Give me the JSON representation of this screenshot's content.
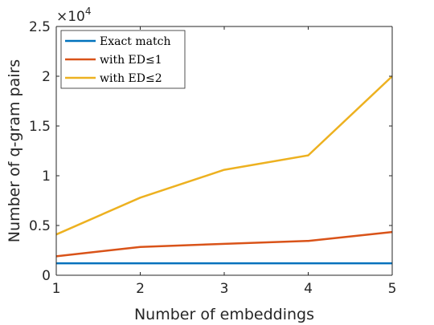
{
  "chart_data": {
    "type": "line",
    "xlabel": "Number of embeddings",
    "ylabel": "Number of q-gram pairs",
    "x": [
      1,
      2,
      3,
      4,
      5
    ],
    "xlim": [
      1,
      5
    ],
    "ylim": [
      0,
      25000
    ],
    "x_ticks": [
      "1",
      "2",
      "3",
      "4",
      "5"
    ],
    "y_ticks": [
      "0",
      "0.5",
      "1",
      "1.5",
      "2",
      "2.5"
    ],
    "y_tick_values": [
      0,
      5000,
      10000,
      15000,
      20000,
      25000
    ],
    "y_exponent_base": "×10",
    "y_exponent_power": "4",
    "grid": false,
    "legend_position": "top-left",
    "series": [
      {
        "name": "Exact match",
        "color": "#0072BD",
        "values": [
          1200,
          1200,
          1200,
          1200,
          1200
        ]
      },
      {
        "name": "with ED≤1",
        "color": "#D95319",
        "values": [
          1900,
          2850,
          3150,
          3450,
          4350
        ]
      },
      {
        "name": "with ED≤2",
        "color": "#EDB120",
        "values": [
          4100,
          7800,
          10600,
          12050,
          20000
        ]
      }
    ]
  }
}
